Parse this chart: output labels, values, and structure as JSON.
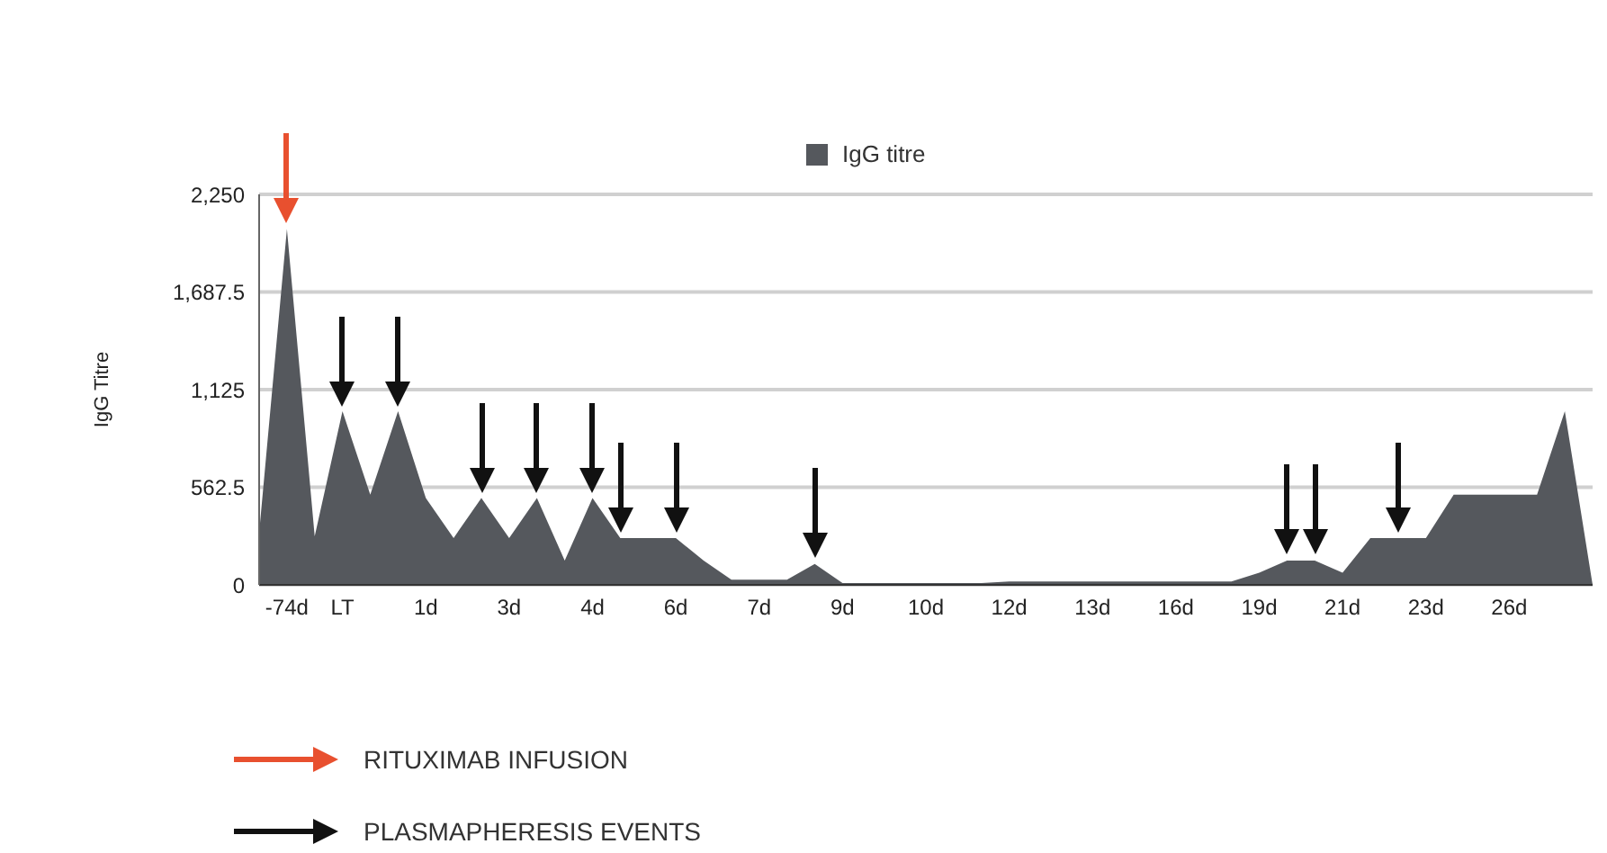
{
  "chart_data": {
    "type": "area",
    "ylabel": "IgG Titre",
    "categories": [
      null,
      "-74d",
      null,
      "LT",
      null,
      null,
      "1d",
      null,
      null,
      "3d",
      null,
      null,
      "4d",
      null,
      null,
      "6d",
      null,
      null,
      "7d",
      null,
      null,
      "9d",
      null,
      null,
      "10d",
      null,
      null,
      "12d",
      null,
      null,
      "13d",
      null,
      null,
      "16d",
      null,
      null,
      "19d",
      null,
      null,
      "21d",
      null,
      null,
      "23d",
      null,
      null,
      "26d",
      null,
      null,
      null
    ],
    "series": [
      {
        "name": "IgG titre",
        "color": "#55585d",
        "values": [
          300,
          2050,
          280,
          1000,
          520,
          1000,
          500,
          270,
          500,
          270,
          500,
          140,
          500,
          270,
          270,
          270,
          140,
          30,
          30,
          30,
          120,
          10,
          10,
          10,
          10,
          10,
          10,
          20,
          20,
          20,
          20,
          20,
          20,
          20,
          20,
          20,
          70,
          140,
          140,
          70,
          270,
          270,
          270,
          520,
          520,
          520,
          520,
          1000,
          0
        ]
      }
    ],
    "ylim": [
      0,
      2250
    ],
    "yticks": [
      0,
      562.5,
      {
        "value": 1125,
        "label": "1,125"
      },
      {
        "value": 1687.5,
        "label": "1,687.5"
      },
      {
        "value": 2250,
        "label": "2,250"
      }
    ],
    "grid": "y",
    "legend": "top",
    "annotations": [
      "RITUXIMAB INFUSION",
      "PLASMAPHERESIS EVENTS"
    ]
  }
}
